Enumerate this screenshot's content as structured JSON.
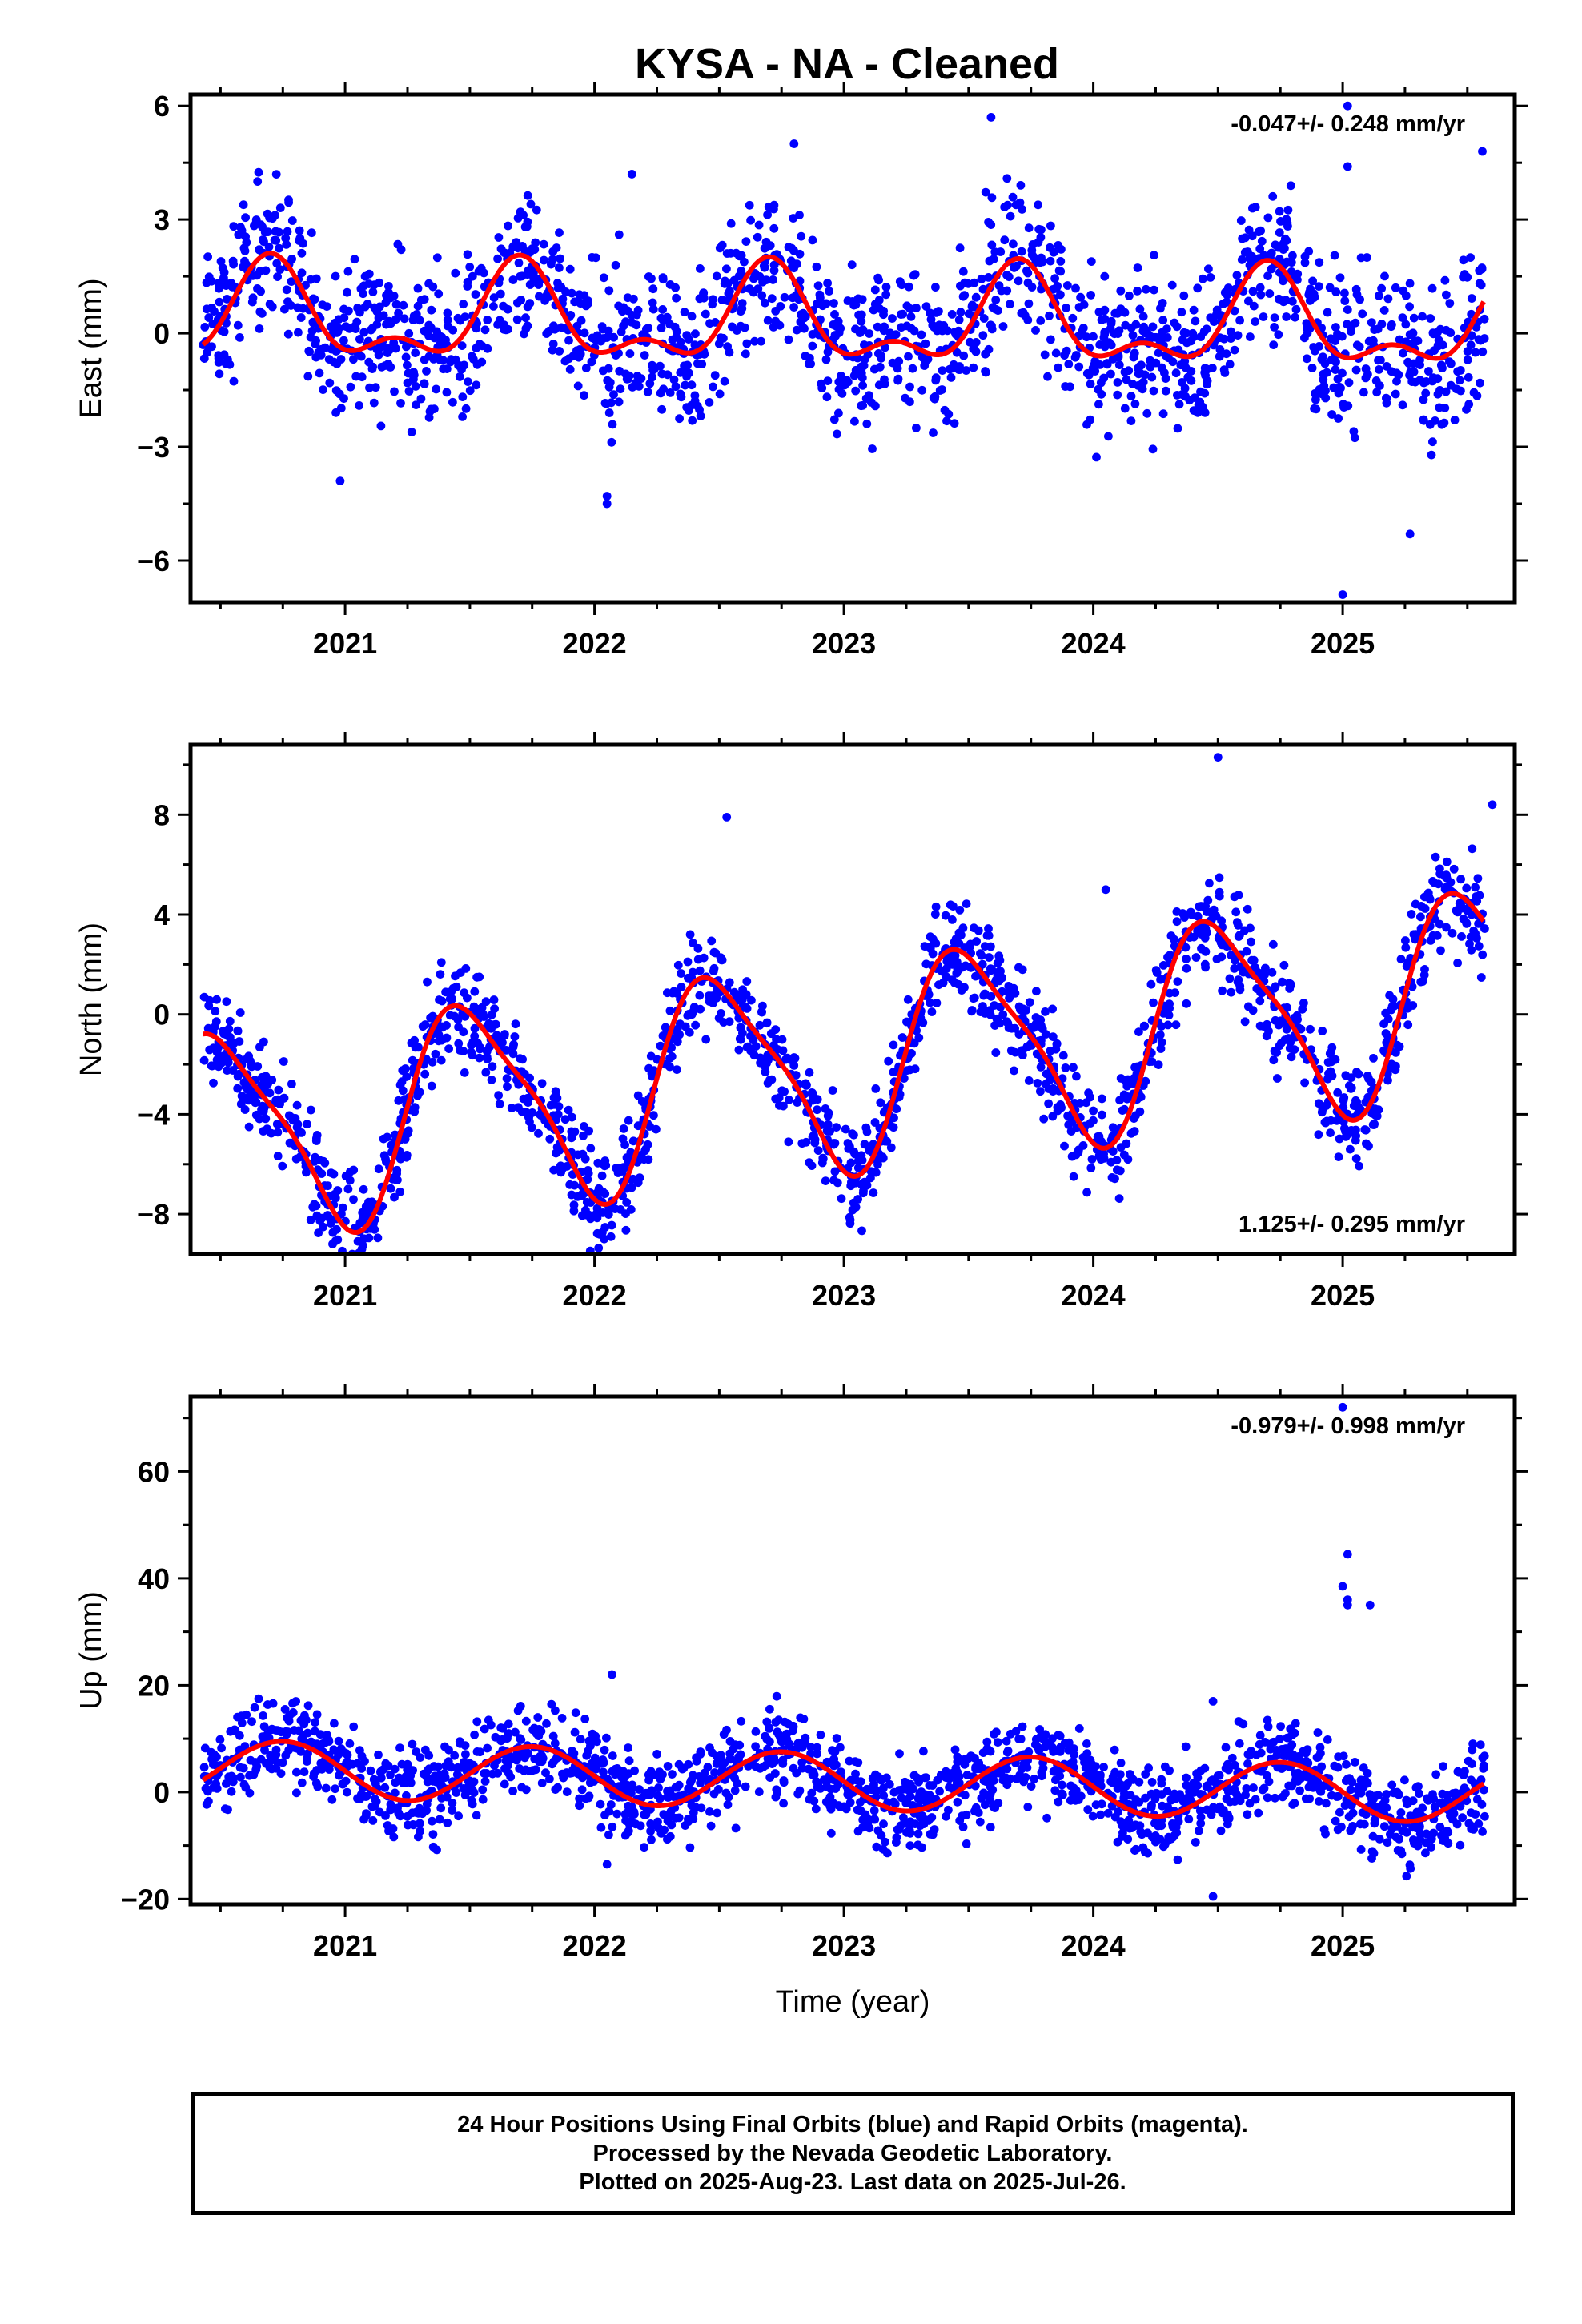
{
  "title": "KYSA  - NA - Cleaned",
  "footer": {
    "line1": "24 Hour Positions Using Final Orbits (blue) and Rapid Orbits (magenta).",
    "line2": "Processed by the Nevada Geodetic Laboratory.",
    "line3": "Plotted on 2025-Aug-23. Last data on 2025-Jul-26."
  },
  "colors": {
    "points": "#0000ff",
    "fit": "#ff0000",
    "frame": "#000000"
  },
  "chart_data": [
    {
      "type": "scatter",
      "ylabel": "East (mm)",
      "xlim": [
        2020.38,
        2025.69
      ],
      "ylim": [
        -7.1,
        6.3
      ],
      "xticks": [
        2021,
        2022,
        2023,
        2024,
        2025
      ],
      "yticks": [
        -6,
        -3,
        0,
        3,
        6
      ],
      "rate": "-0.047+/- 0.248 mm/yr",
      "rate_position": "top-right",
      "series": [
        {
          "role": "daily-positions",
          "x_start": 2020.43,
          "x_end": 2025.57,
          "count": 1750,
          "annual_amp": 1.1,
          "annual_phase": 0.7,
          "semiannual_amp": 0.6,
          "semiannual_phase": 0.2,
          "trend": -0.047,
          "offset": 0.3,
          "scatter_sd": 1.0,
          "seed": 11
        },
        {
          "role": "seasonal-fit"
        }
      ],
      "outliers": [
        {
          "x": 2025.02,
          "y": 6.0
        },
        {
          "x": 2025.02,
          "y": 4.4
        },
        {
          "x": 2025.0,
          "y": -6.9
        },
        {
          "x": 2025.27,
          "y": -5.3
        },
        {
          "x": 2022.05,
          "y": -4.5
        },
        {
          "x": 2022.05,
          "y": -4.3
        },
        {
          "x": 2020.98,
          "y": -3.9
        },
        {
          "x": 2023.59,
          "y": 5.7
        },
        {
          "x": 2022.8,
          "y": 5.0
        },
        {
          "x": 2025.56,
          "y": 4.8
        },
        {
          "x": 2021.99,
          "y": 2.0
        },
        {
          "x": 2022.15,
          "y": 4.2
        }
      ]
    },
    {
      "type": "scatter",
      "ylabel": "North (mm)",
      "xlim": [
        2020.38,
        2025.69
      ],
      "ylim": [
        -9.6,
        10.8
      ],
      "xticks": [
        2021,
        2022,
        2023,
        2024,
        2025
      ],
      "yticks": [
        -8,
        -4,
        0,
        4,
        8
      ],
      "rate": "1.125+/- 0.295 mm/yr",
      "rate_position": "bottom-right",
      "series": [
        {
          "role": "daily-positions",
          "x_start": 2020.43,
          "x_end": 2025.57,
          "count": 1750,
          "annual_amp": 4.0,
          "annual_phase": 0.5,
          "semiannual_amp": 0.9,
          "semiannual_phase": 0.35,
          "trend": 1.125,
          "offset": -2.0,
          "scatter_sd": 1.0,
          "seed": 23
        },
        {
          "role": "seasonal-fit"
        }
      ],
      "outliers": [
        {
          "x": 2020.95,
          "y": -9.2
        },
        {
          "x": 2021.1,
          "y": -8.2
        },
        {
          "x": 2024.5,
          "y": 10.3
        },
        {
          "x": 2025.03,
          "y": -5.4
        },
        {
          "x": 2025.02,
          "y": -4.8
        },
        {
          "x": 2022.53,
          "y": 7.9
        },
        {
          "x": 2024.05,
          "y": 5.0
        },
        {
          "x": 2025.6,
          "y": 8.4
        }
      ]
    },
    {
      "type": "scatter",
      "xlabel": "Time (year)",
      "ylabel": "Up (mm)",
      "xlim": [
        2020.38,
        2025.69
      ],
      "ylim": [
        -21,
        74
      ],
      "xticks": [
        2021,
        2022,
        2023,
        2024,
        2025
      ],
      "yticks": [
        -20,
        0,
        20,
        40,
        60
      ],
      "rate": "-0.979+/- 0.998 mm/yr",
      "rate_position": "top-right",
      "series": [
        {
          "role": "daily-positions",
          "x_start": 2020.43,
          "x_end": 2025.57,
          "count": 1750,
          "annual_amp": 5.3,
          "annual_phase": 0.75,
          "semiannual_amp": 0.0,
          "semiannual_phase": 0.0,
          "trend": -0.979,
          "offset": 2.0,
          "scatter_sd": 4.0,
          "seed": 37
        },
        {
          "role": "seasonal-fit"
        }
      ],
      "outliers": [
        {
          "x": 2025.0,
          "y": 72
        },
        {
          "x": 2025.02,
          "y": 44.5
        },
        {
          "x": 2025.0,
          "y": 38.5
        },
        {
          "x": 2025.02,
          "y": 36
        },
        {
          "x": 2025.02,
          "y": 35
        },
        {
          "x": 2025.11,
          "y": 35
        },
        {
          "x": 2022.07,
          "y": 22
        },
        {
          "x": 2024.48,
          "y": 17
        },
        {
          "x": 2024.48,
          "y": -19.5
        },
        {
          "x": 2022.05,
          "y": -13.5
        }
      ]
    }
  ]
}
